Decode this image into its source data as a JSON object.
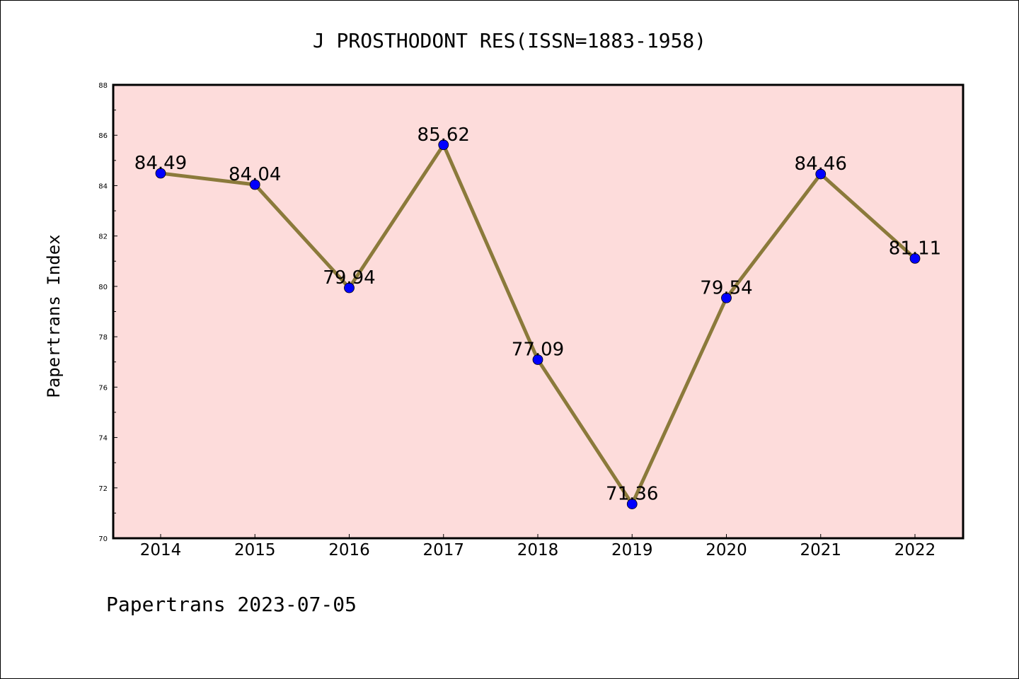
{
  "chart_data": {
    "type": "line",
    "title": "J PROSTHODONT RES(ISSN=1883-1958)",
    "xlabel": "",
    "ylabel": "Papertrans Index",
    "categories": [
      "2014",
      "2015",
      "2016",
      "2017",
      "2018",
      "2019",
      "2020",
      "2021",
      "2022"
    ],
    "values": [
      84.49,
      84.04,
      79.94,
      85.62,
      77.09,
      71.36,
      79.54,
      84.46,
      81.11
    ],
    "data_labels": [
      "84.49",
      "84.04",
      "79.94",
      "85.62",
      "77.09",
      "71.36",
      "79.54",
      "84.46",
      "81.11"
    ],
    "ylim": [
      70,
      88
    ],
    "yticks": [
      "70",
      "72",
      "74",
      "76",
      "78",
      "80",
      "82",
      "84",
      "86",
      "88"
    ],
    "grid": false,
    "legend": "none",
    "colors": {
      "plot_background": "#fddcdb",
      "line": "#8b7a3b",
      "marker": "#0000ff",
      "axis": "#000000"
    }
  },
  "footer": {
    "watermark": "Papertrans 2023-07-05"
  }
}
